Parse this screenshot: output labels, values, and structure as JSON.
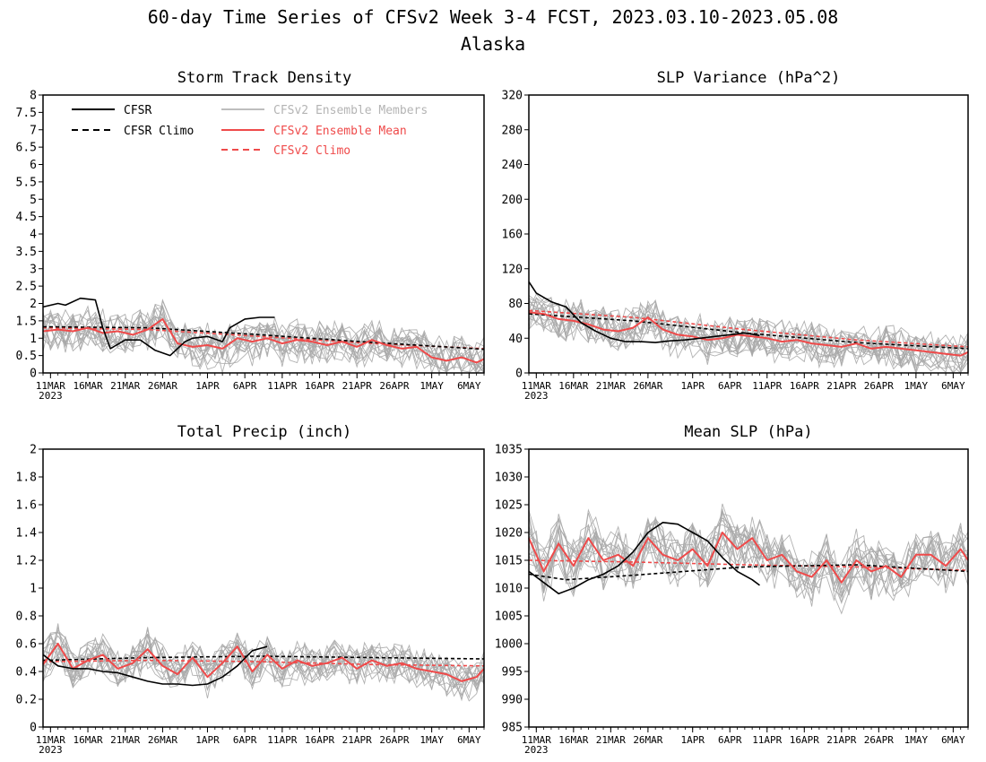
{
  "figure": {
    "title_line1": "60-day Time Series of CFSv2 Week 3-4 FCST, 2023.03.10-2023.05.08",
    "title_line2": "Alaska"
  },
  "legend": {
    "cfsr": "CFSR",
    "cfsr_climo": "CFSR Climo",
    "members": "CFSv2 Ensemble Members",
    "ens_mean": "CFSv2 Ensemble Mean",
    "cfsv2_climo": "CFSv2 Climo"
  },
  "colors": {
    "cfsr": "#000000",
    "cfsr_climo": "#000000",
    "members": "#a9a9a9",
    "ens_mean": "#ef4a4a",
    "cfsv2_climo": "#ef4a4a",
    "members_legend_text": "#b4b4b4"
  },
  "x_axis": {
    "start_date": "2023-03-10",
    "n_days": 60,
    "tick_labels": [
      "11MAR",
      "16MAR",
      "21MAR",
      "26MAR",
      "1APR",
      "6APR",
      "11APR",
      "16APR",
      "21APR",
      "26APR",
      "1MAY",
      "6MAY"
    ],
    "tick_dates": [
      "2023-03-11",
      "2023-03-16",
      "2023-03-21",
      "2023-03-26",
      "2023-04-01",
      "2023-04-06",
      "2023-04-11",
      "2023-04-16",
      "2023-04-21",
      "2023-04-26",
      "2023-05-01",
      "2023-05-06"
    ],
    "year_label": "2023"
  },
  "chart_data": [
    {
      "type": "line",
      "title": "Storm Track Density",
      "ylim": [
        0,
        8
      ],
      "yticks": [
        0,
        0.5,
        1,
        1.5,
        2,
        2.5,
        3,
        3.5,
        4,
        4.5,
        5,
        5.5,
        6,
        6.5,
        7,
        7.5,
        8
      ],
      "ytick_labels": [
        "0",
        "0.5",
        "1",
        "1.5",
        "2",
        "2.5",
        "3",
        "3.5",
        "4",
        "4.5",
        "5",
        "5.5",
        "6",
        "6.5",
        "7",
        "7.5",
        "8"
      ],
      "member_spread": 0.55,
      "series": [
        {
          "name": "CFSR",
          "style": "cfsr",
          "x": [
            "2023-03-10",
            "2023-03-12",
            "2023-03-13",
            "2023-03-15",
            "2023-03-17",
            "2023-03-18",
            "2023-03-19",
            "2023-03-21",
            "2023-03-23",
            "2023-03-25",
            "2023-03-27",
            "2023-03-29",
            "2023-03-30",
            "2023-04-01",
            "2023-04-03",
            "2023-04-04",
            "2023-04-06",
            "2023-04-08",
            "2023-04-10"
          ],
          "y": [
            1.9,
            2.0,
            1.95,
            2.15,
            2.1,
            1.3,
            0.7,
            0.95,
            0.95,
            0.65,
            0.5,
            0.9,
            1.0,
            1.05,
            0.9,
            1.3,
            1.55,
            1.6,
            1.6
          ]
        },
        {
          "name": "CFSR Climo",
          "style": "cfsr_climo",
          "x": [
            "2023-03-10",
            "2023-03-24",
            "2023-04-08",
            "2023-04-23",
            "2023-05-08"
          ],
          "y": [
            1.33,
            1.3,
            1.1,
            0.88,
            0.68
          ]
        },
        {
          "name": "CFSv2 Ensemble Mean",
          "style": "ens_mean",
          "x": [
            "2023-03-10",
            "2023-03-12",
            "2023-03-14",
            "2023-03-16",
            "2023-03-18",
            "2023-03-20",
            "2023-03-22",
            "2023-03-24",
            "2023-03-26",
            "2023-03-28",
            "2023-03-30",
            "2023-04-01",
            "2023-04-03",
            "2023-04-05",
            "2023-04-07",
            "2023-04-09",
            "2023-04-11",
            "2023-04-13",
            "2023-04-15",
            "2023-04-17",
            "2023-04-19",
            "2023-04-21",
            "2023-04-23",
            "2023-04-25",
            "2023-04-27",
            "2023-04-29",
            "2023-05-01",
            "2023-05-03",
            "2023-05-05",
            "2023-05-07",
            "2023-05-08"
          ],
          "y": [
            1.2,
            1.25,
            1.2,
            1.3,
            1.15,
            1.2,
            1.1,
            1.25,
            1.55,
            0.85,
            0.75,
            0.8,
            0.7,
            1.0,
            0.9,
            1.0,
            0.85,
            0.95,
            0.9,
            0.8,
            0.9,
            0.75,
            0.95,
            0.8,
            0.7,
            0.75,
            0.45,
            0.35,
            0.45,
            0.3,
            0.4
          ]
        },
        {
          "name": "CFSv2 Climo",
          "style": "cfsv2_climo",
          "x": [
            "2023-03-10",
            "2023-03-24",
            "2023-04-08",
            "2023-04-23",
            "2023-05-08"
          ],
          "y": [
            1.3,
            1.25,
            1.05,
            0.85,
            0.7
          ]
        }
      ]
    },
    {
      "type": "line",
      "title": "SLP Variance (hPa^2)",
      "ylim": [
        0,
        320
      ],
      "yticks": [
        0,
        40,
        80,
        120,
        160,
        200,
        240,
        280,
        320
      ],
      "ytick_labels": [
        "0",
        "40",
        "80",
        "120",
        "160",
        "200",
        "240",
        "280",
        "320"
      ],
      "member_spread": 22,
      "series": [
        {
          "name": "CFSR",
          "style": "cfsr",
          "x": [
            "2023-03-10",
            "2023-03-11",
            "2023-03-13",
            "2023-03-15",
            "2023-03-17",
            "2023-03-19",
            "2023-03-21",
            "2023-03-23",
            "2023-03-25",
            "2023-03-27",
            "2023-03-29",
            "2023-03-31",
            "2023-04-02",
            "2023-04-04",
            "2023-04-06",
            "2023-04-08",
            "2023-04-10"
          ],
          "y": [
            105,
            92,
            82,
            76,
            58,
            48,
            40,
            36,
            36,
            35,
            37,
            38,
            40,
            42,
            44,
            46,
            43
          ]
        },
        {
          "name": "CFSR Climo",
          "style": "cfsr_climo",
          "x": [
            "2023-03-10",
            "2023-03-24",
            "2023-04-08",
            "2023-04-23",
            "2023-05-08"
          ],
          "y": [
            68,
            60,
            46,
            35,
            28
          ]
        },
        {
          "name": "CFSv2 Ensemble Mean",
          "style": "ens_mean",
          "x": [
            "2023-03-10",
            "2023-03-12",
            "2023-03-14",
            "2023-03-16",
            "2023-03-18",
            "2023-03-20",
            "2023-03-22",
            "2023-03-24",
            "2023-03-26",
            "2023-03-28",
            "2023-03-30",
            "2023-04-01",
            "2023-04-03",
            "2023-04-05",
            "2023-04-07",
            "2023-04-09",
            "2023-04-11",
            "2023-04-13",
            "2023-04-15",
            "2023-04-17",
            "2023-04-19",
            "2023-04-21",
            "2023-04-23",
            "2023-04-25",
            "2023-04-27",
            "2023-04-29",
            "2023-05-01",
            "2023-05-03",
            "2023-05-05",
            "2023-05-07",
            "2023-05-08"
          ],
          "y": [
            70,
            68,
            62,
            60,
            56,
            50,
            48,
            52,
            64,
            50,
            44,
            42,
            38,
            40,
            44,
            42,
            40,
            36,
            38,
            34,
            32,
            30,
            34,
            28,
            30,
            28,
            26,
            24,
            22,
            20,
            24
          ]
        },
        {
          "name": "CFSv2 Climo",
          "style": "cfsv2_climo",
          "x": [
            "2023-03-10",
            "2023-03-24",
            "2023-04-08",
            "2023-04-23",
            "2023-05-08"
          ],
          "y": [
            72,
            64,
            50,
            38,
            30
          ]
        }
      ]
    },
    {
      "type": "line",
      "title": "Total Precip (inch)",
      "ylim": [
        0,
        2
      ],
      "yticks": [
        0,
        0.2,
        0.4,
        0.6,
        0.8,
        1,
        1.2,
        1.4,
        1.6,
        1.8,
        2
      ],
      "ytick_labels": [
        "0",
        "0.2",
        "0.4",
        "0.6",
        "0.8",
        "1",
        "1.2",
        "1.4",
        "1.6",
        "1.8",
        "2"
      ],
      "member_spread": 0.13,
      "series": [
        {
          "name": "CFSR",
          "style": "cfsr",
          "x": [
            "2023-03-10",
            "2023-03-12",
            "2023-03-14",
            "2023-03-16",
            "2023-03-18",
            "2023-03-20",
            "2023-03-22",
            "2023-03-24",
            "2023-03-26",
            "2023-03-28",
            "2023-03-30",
            "2023-04-01",
            "2023-04-03",
            "2023-04-05",
            "2023-04-07",
            "2023-04-09"
          ],
          "y": [
            0.52,
            0.44,
            0.42,
            0.42,
            0.4,
            0.39,
            0.36,
            0.33,
            0.31,
            0.31,
            0.3,
            0.31,
            0.36,
            0.44,
            0.55,
            0.58
          ]
        },
        {
          "name": "CFSR Climo",
          "style": "cfsr_climo",
          "x": [
            "2023-03-10",
            "2023-03-24",
            "2023-04-08",
            "2023-04-23",
            "2023-05-08"
          ],
          "y": [
            0.48,
            0.5,
            0.51,
            0.5,
            0.49
          ]
        },
        {
          "name": "CFSv2 Ensemble Mean",
          "style": "ens_mean",
          "x": [
            "2023-03-10",
            "2023-03-12",
            "2023-03-14",
            "2023-03-16",
            "2023-03-18",
            "2023-03-20",
            "2023-03-22",
            "2023-03-24",
            "2023-03-26",
            "2023-03-28",
            "2023-03-30",
            "2023-04-01",
            "2023-04-03",
            "2023-04-05",
            "2023-04-07",
            "2023-04-09",
            "2023-04-11",
            "2023-04-13",
            "2023-04-15",
            "2023-04-17",
            "2023-04-19",
            "2023-04-21",
            "2023-04-23",
            "2023-04-25",
            "2023-04-27",
            "2023-04-29",
            "2023-05-01",
            "2023-05-03",
            "2023-05-05",
            "2023-05-07",
            "2023-05-08"
          ],
          "y": [
            0.45,
            0.6,
            0.42,
            0.48,
            0.52,
            0.42,
            0.46,
            0.56,
            0.44,
            0.38,
            0.5,
            0.36,
            0.46,
            0.58,
            0.4,
            0.52,
            0.42,
            0.48,
            0.44,
            0.46,
            0.5,
            0.42,
            0.48,
            0.44,
            0.46,
            0.42,
            0.4,
            0.38,
            0.33,
            0.36,
            0.42
          ]
        },
        {
          "name": "CFSv2 Climo",
          "style": "cfsv2_climo",
          "x": [
            "2023-03-10",
            "2023-03-24",
            "2023-04-08",
            "2023-04-23",
            "2023-05-08"
          ],
          "y": [
            0.47,
            0.48,
            0.47,
            0.45,
            0.44
          ]
        }
      ]
    },
    {
      "type": "line",
      "title": "Mean SLP (hPa)",
      "ylim": [
        985,
        1035
      ],
      "yticks": [
        985,
        990,
        995,
        1000,
        1005,
        1010,
        1015,
        1020,
        1025,
        1030,
        1035
      ],
      "ytick_labels": [
        "985",
        "990",
        "995",
        "1000",
        "1005",
        "1010",
        "1015",
        "1020",
        "1025",
        "1030",
        "1035"
      ],
      "member_spread": 4.5,
      "series": [
        {
          "name": "CFSR",
          "style": "cfsr",
          "x": [
            "2023-03-10",
            "2023-03-12",
            "2023-03-14",
            "2023-03-16",
            "2023-03-18",
            "2023-03-20",
            "2023-03-22",
            "2023-03-24",
            "2023-03-26",
            "2023-03-28",
            "2023-03-30",
            "2023-04-01",
            "2023-04-03",
            "2023-04-05",
            "2023-04-07",
            "2023-04-09",
            "2023-04-10"
          ],
          "y": [
            1013,
            1011,
            1009,
            1010,
            1011.5,
            1012.5,
            1014,
            1016.5,
            1020,
            1021.8,
            1021.5,
            1020,
            1018.5,
            1015.5,
            1013,
            1011.5,
            1010.5
          ]
        },
        {
          "name": "CFSR Climo",
          "style": "cfsr_climo",
          "x": [
            "2023-03-10",
            "2023-03-15",
            "2023-03-24",
            "2023-04-08",
            "2023-04-23",
            "2023-05-08"
          ],
          "y": [
            1012.5,
            1011.5,
            1012.3,
            1013.8,
            1014.2,
            1013
          ]
        },
        {
          "name": "CFSv2 Ensemble Mean",
          "style": "ens_mean",
          "x": [
            "2023-03-10",
            "2023-03-12",
            "2023-03-14",
            "2023-03-16",
            "2023-03-18",
            "2023-03-20",
            "2023-03-22",
            "2023-03-24",
            "2023-03-26",
            "2023-03-28",
            "2023-03-30",
            "2023-04-01",
            "2023-04-03",
            "2023-04-05",
            "2023-04-07",
            "2023-04-09",
            "2023-04-11",
            "2023-04-13",
            "2023-04-15",
            "2023-04-17",
            "2023-04-19",
            "2023-04-21",
            "2023-04-23",
            "2023-04-25",
            "2023-04-27",
            "2023-04-29",
            "2023-05-01",
            "2023-05-03",
            "2023-05-05",
            "2023-05-07",
            "2023-05-08"
          ],
          "y": [
            1019,
            1013,
            1018,
            1014,
            1019,
            1015,
            1016,
            1014,
            1019,
            1016,
            1015,
            1017,
            1014,
            1020,
            1017,
            1019,
            1015,
            1016,
            1013,
            1012,
            1015,
            1011,
            1015,
            1013,
            1014,
            1012,
            1016,
            1016,
            1014,
            1017,
            1015
          ]
        },
        {
          "name": "CFSv2 Climo",
          "style": "cfsv2_climo",
          "x": [
            "2023-03-10",
            "2023-03-24",
            "2023-04-08",
            "2023-04-23",
            "2023-05-08"
          ],
          "y": [
            1015,
            1014.7,
            1014.2,
            1013.8,
            1013.2
          ]
        }
      ]
    }
  ]
}
